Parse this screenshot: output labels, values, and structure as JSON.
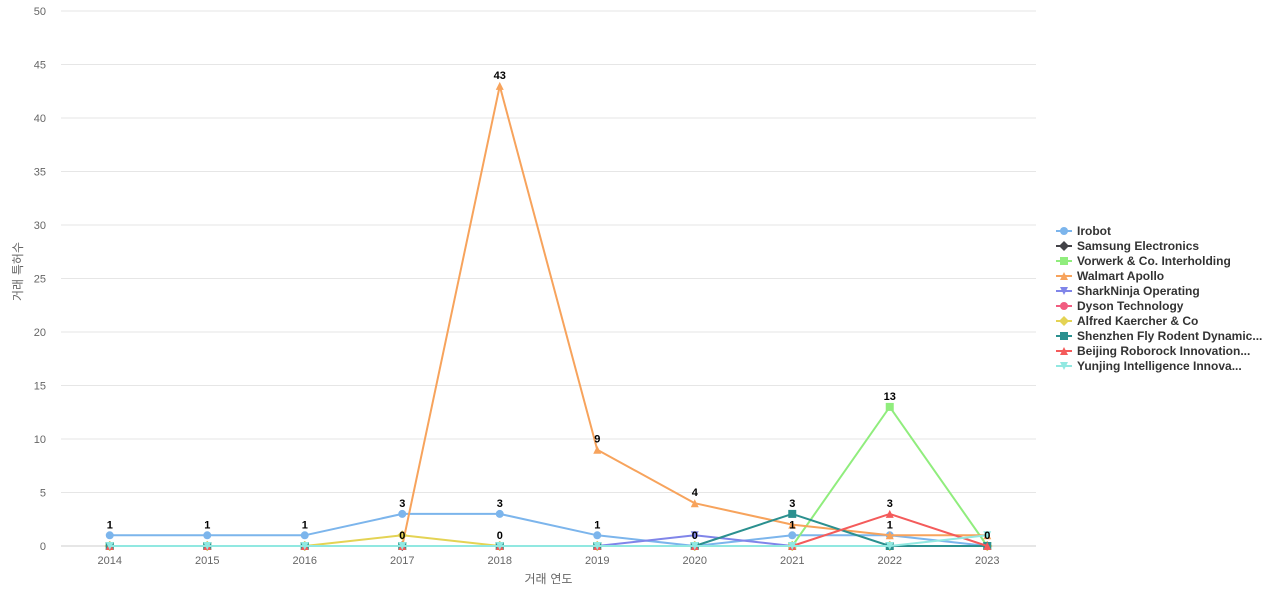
{
  "chart_data": {
    "type": "line",
    "xlabel": "거래 연도",
    "ylabel": "거래 특허수",
    "ylim": [
      0,
      50
    ],
    "yticks": [
      0,
      5,
      10,
      15,
      20,
      25,
      30,
      35,
      40,
      45,
      50
    ],
    "grid": true,
    "legend_position": "right",
    "categories": [
      "2014",
      "2015",
      "2016",
      "2017",
      "2018",
      "2019",
      "2020",
      "2021",
      "2022",
      "2023"
    ],
    "series": [
      {
        "name": "Irobot",
        "color": "#7cb5ec",
        "marker": "circle",
        "values": [
          1,
          1,
          1,
          3,
          3,
          1,
          0,
          1,
          1,
          0
        ]
      },
      {
        "name": "Samsung Electronics",
        "color": "#434348",
        "marker": "diamond",
        "values": [
          0,
          0,
          0,
          0,
          0,
          0,
          0,
          0,
          0,
          0
        ]
      },
      {
        "name": "Vorwerk & Co. Interholding",
        "color": "#90ed7d",
        "marker": "square",
        "values": [
          0,
          0,
          0,
          0,
          0,
          0,
          0,
          0,
          13,
          0
        ]
      },
      {
        "name": "Walmart Apollo",
        "color": "#f7a35c",
        "marker": "triangle",
        "values": [
          0,
          0,
          0,
          0,
          43,
          9,
          4,
          2,
          1,
          1
        ]
      },
      {
        "name": "SharkNinja Operating",
        "color": "#8085e9",
        "marker": "triangle-down",
        "values": [
          0,
          0,
          0,
          0,
          0,
          0,
          1,
          0,
          0,
          0
        ]
      },
      {
        "name": "Dyson Technology",
        "color": "#f15c80",
        "marker": "circle",
        "values": [
          0,
          0,
          0,
          0,
          0,
          0,
          0,
          0,
          0,
          0
        ]
      },
      {
        "name": "Alfred Kaercher & Co",
        "color": "#e4d354",
        "marker": "diamond",
        "values": [
          0,
          0,
          0,
          1,
          0,
          0,
          0,
          0,
          0,
          0
        ]
      },
      {
        "name": "Shenzhen Fly Rodent Dynamic...",
        "color": "#2b908f",
        "marker": "square",
        "values": [
          0,
          0,
          0,
          0,
          0,
          0,
          0,
          3,
          0,
          0
        ]
      },
      {
        "name": "Beijing Roborock Innovation...",
        "color": "#f45b5b",
        "marker": "triangle",
        "values": [
          0,
          0,
          0,
          0,
          0,
          0,
          0,
          0,
          3,
          0
        ]
      },
      {
        "name": "Yunjing Intelligence Innova...",
        "color": "#91e8e1",
        "marker": "triangle-down",
        "values": [
          0,
          0,
          0,
          0,
          0,
          0,
          0,
          0,
          0,
          1
        ]
      }
    ],
    "data_labels": [
      {
        "x": "2014",
        "text": "1",
        "value": 1
      },
      {
        "x": "2015",
        "text": "1",
        "value": 1
      },
      {
        "x": "2016",
        "text": "1",
        "value": 1
      },
      {
        "x": "2017",
        "text": "3",
        "value": 3
      },
      {
        "x": "2017",
        "text": "0",
        "value": 0
      },
      {
        "x": "2018",
        "text": "43",
        "value": 43
      },
      {
        "x": "2018",
        "text": "3",
        "value": 3
      },
      {
        "x": "2018",
        "text": "0",
        "value": 0
      },
      {
        "x": "2019",
        "text": "9",
        "value": 9
      },
      {
        "x": "2019",
        "text": "1",
        "value": 1
      },
      {
        "x": "2020",
        "text": "4",
        "value": 4
      },
      {
        "x": "2020",
        "text": "0",
        "value": 0
      },
      {
        "x": "2021",
        "text": "3",
        "value": 3
      },
      {
        "x": "2021",
        "text": "1",
        "value": 1
      },
      {
        "x": "2022",
        "text": "13",
        "value": 13
      },
      {
        "x": "2022",
        "text": "3",
        "value": 3
      },
      {
        "x": "2022",
        "text": "1",
        "value": 1
      },
      {
        "x": "2023",
        "text": "0",
        "value": 0
      }
    ]
  }
}
